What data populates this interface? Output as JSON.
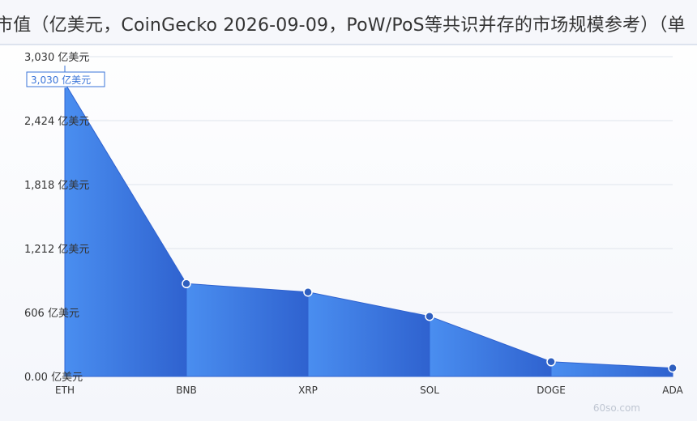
{
  "title": "市值（亿美元，CoinGecko 2026-09-09，PoW/PoS等共识并存的市场规模参考）（单",
  "watermark": "60so.com",
  "colors": {
    "area_left": "#4a8ef0",
    "area_right": "#2f62cf",
    "marker": "#2f5fbf",
    "grid": "#dfe4ec",
    "callout_border": "#3a74d8"
  },
  "callout": {
    "label": "3,030 亿美元"
  },
  "chart_data": {
    "type": "area",
    "categories": [
      "ETH",
      "BNB",
      "XRP",
      "SOL",
      "DOGE",
      "ADA"
    ],
    "series": [
      {
        "values": [
          2780,
          880,
          800,
          570,
          140,
          80
        ]
      }
    ],
    "ylim": [
      0,
      3030
    ],
    "yticks": [
      {
        "value": 0,
        "label": "0.00 亿美元"
      },
      {
        "value": 606,
        "label": "606 亿美元"
      },
      {
        "value": 1212,
        "label": "1,212 亿美元"
      },
      {
        "value": 1818,
        "label": "1,818 亿美元"
      },
      {
        "value": 2424,
        "label": "2,424 亿美元"
      },
      {
        "value": 3030,
        "label": "3,030 亿美元"
      }
    ],
    "grid": true,
    "legend": "none"
  }
}
